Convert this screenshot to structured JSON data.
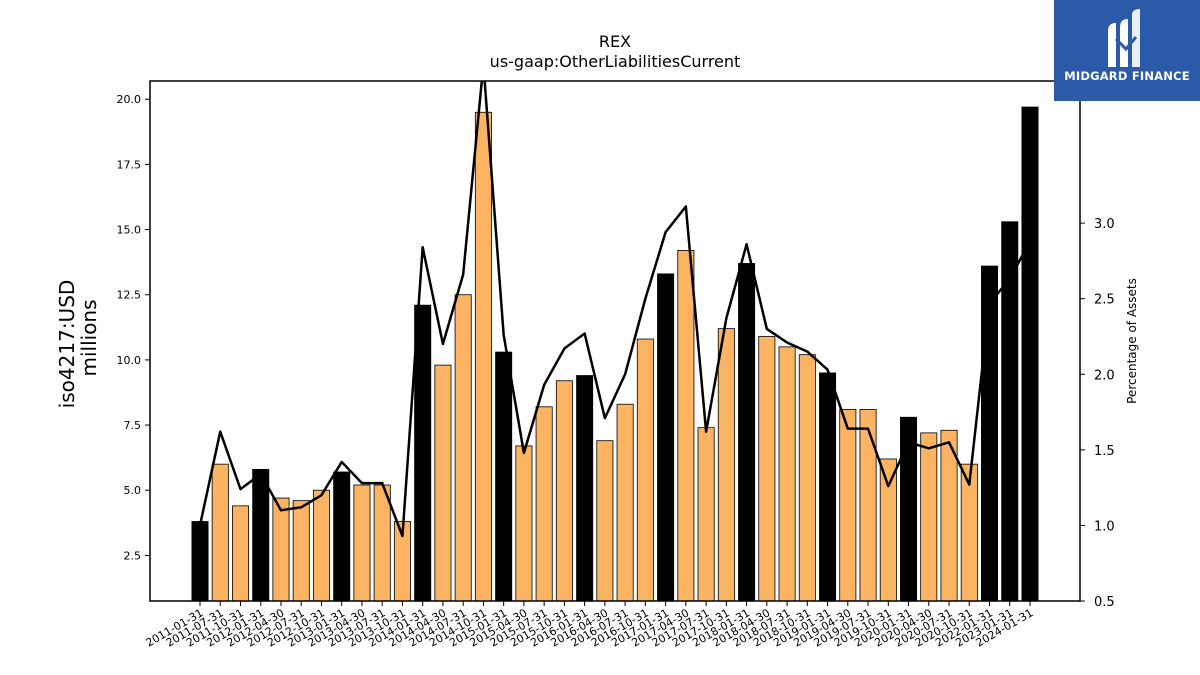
{
  "chart_data": {
    "type": "bar",
    "title": "REX",
    "subtitle": "us-gaap:OtherLiabilitiesCurrent",
    "ylabel_left_line1": "iso4217:USD",
    "ylabel_left_line2": "millions",
    "ylabel_right": "Percentage of Assets",
    "ylim": [
      0.75,
      20.7
    ],
    "y2lim": [
      0.5,
      3.94
    ],
    "yticks": [
      2.5,
      5.0,
      7.5,
      10.0,
      12.5,
      15.0,
      17.5,
      20.0
    ],
    "y2ticks": [
      0.5,
      1.0,
      1.5,
      2.0,
      2.5,
      3.0
    ],
    "categories": [
      "2011-01-31",
      "2011-07-31",
      "2011-10-31",
      "2012-01-31",
      "2012-04-30",
      "2012-07-31",
      "2012-10-31",
      "2013-01-31",
      "2013-04-30",
      "2013-07-31",
      "2013-10-31",
      "2014-01-31",
      "2014-04-30",
      "2014-07-31",
      "2014-10-31",
      "2015-01-31",
      "2015-04-30",
      "2015-07-31",
      "2015-10-31",
      "2016-01-31",
      "2016-04-30",
      "2016-07-31",
      "2016-10-31",
      "2017-01-31",
      "2017-04-30",
      "2017-07-31",
      "2017-10-31",
      "2018-01-31",
      "2018-04-30",
      "2018-07-31",
      "2018-10-31",
      "2019-01-31",
      "2019-04-30",
      "2019-07-31",
      "2019-10-31",
      "2020-01-31",
      "2020-04-30",
      "2020-07-31",
      "2020-10-31",
      "2022-01-31",
      "2023-01-31",
      "2024-01-31"
    ],
    "values": [
      3.8,
      6.0,
      4.4,
      5.8,
      4.7,
      4.6,
      5.0,
      5.7,
      5.2,
      5.2,
      3.8,
      12.1,
      9.8,
      12.5,
      19.5,
      10.3,
      6.7,
      8.2,
      9.2,
      9.4,
      6.9,
      8.3,
      10.8,
      13.3,
      14.2,
      7.4,
      11.2,
      13.7,
      10.9,
      10.5,
      10.2,
      9.5,
      8.1,
      8.1,
      6.2,
      7.8,
      7.2,
      7.3,
      6.0,
      13.6,
      15.3,
      19.7
    ],
    "annual": [
      true,
      false,
      false,
      true,
      false,
      false,
      false,
      true,
      false,
      false,
      false,
      true,
      false,
      false,
      false,
      true,
      false,
      false,
      false,
      true,
      false,
      false,
      false,
      true,
      false,
      false,
      false,
      true,
      false,
      false,
      false,
      true,
      false,
      false,
      false,
      true,
      false,
      false,
      false,
      true,
      true,
      true
    ],
    "pct_assets": [
      1.0,
      1.62,
      1.24,
      1.34,
      1.1,
      1.12,
      1.2,
      1.42,
      1.28,
      1.28,
      0.93,
      2.84,
      2.2,
      2.66,
      4.05,
      2.26,
      1.48,
      1.93,
      2.17,
      2.27,
      1.71,
      2.0,
      2.5,
      2.94,
      3.11,
      1.62,
      2.37,
      2.86,
      2.3,
      2.21,
      2.15,
      2.03,
      1.64,
      1.64,
      1.26,
      1.55,
      1.51,
      1.55,
      1.27,
      2.47,
      2.63,
      2.88
    ],
    "colors": {
      "annual_bar": "#000000",
      "quarter_bar": "#fdb462",
      "line": "#000000"
    },
    "grid": false
  },
  "logo": {
    "text": "MIDGARD FINANCE",
    "bg": "#2b5aa8",
    "mark": "stylized-m-icon"
  }
}
